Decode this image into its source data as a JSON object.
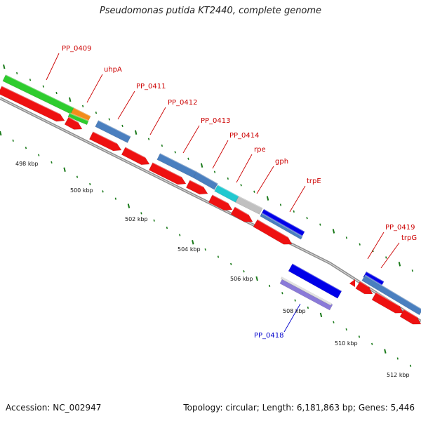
{
  "title": "Pseudomonas putida KT2440, complete genome",
  "footer": {
    "accession": "Accession: NC_002947",
    "topology": "Topology: circular; Length: 6,181,863 bp; Genes: 5,446"
  },
  "colors": {
    "backbone": "#8c8c8c",
    "tick": "#1a7a1a",
    "label_forward": "#cc0000",
    "label_reverse": "#0000cc",
    "gene_green": "#2ecc2e",
    "gene_orange": "#f28c1a",
    "gene_steelblue": "#4a7fbf",
    "gene_cyan": "#22c8d0",
    "gene_gray": "#c0c0c0",
    "gene_blue": "#0000e8",
    "gene_lavender": "#8a7ad8",
    "gene_red": "#ee1111"
  },
  "scale_labels": [
    "498 kbp",
    "500 kbp",
    "502 kbp",
    "504 kbp",
    "506 kbp",
    "508 kbp",
    "510 kbp",
    "512 kbp"
  ],
  "gene_labels": [
    {
      "name": "PP_0409",
      "strand": "forward"
    },
    {
      "name": "uhpA",
      "strand": "forward"
    },
    {
      "name": "PP_0411",
      "strand": "forward"
    },
    {
      "name": "PP_0412",
      "strand": "forward"
    },
    {
      "name": "PP_0413",
      "strand": "forward"
    },
    {
      "name": "PP_0414",
      "strand": "forward"
    },
    {
      "name": "rpe",
      "strand": "forward"
    },
    {
      "name": "gph",
      "strand": "forward"
    },
    {
      "name": "trpE",
      "strand": "forward"
    },
    {
      "name": "PP_0419",
      "strand": "forward"
    },
    {
      "name": "trpG",
      "strand": "forward"
    },
    {
      "name": "PP_0418",
      "strand": "reverse"
    }
  ]
}
